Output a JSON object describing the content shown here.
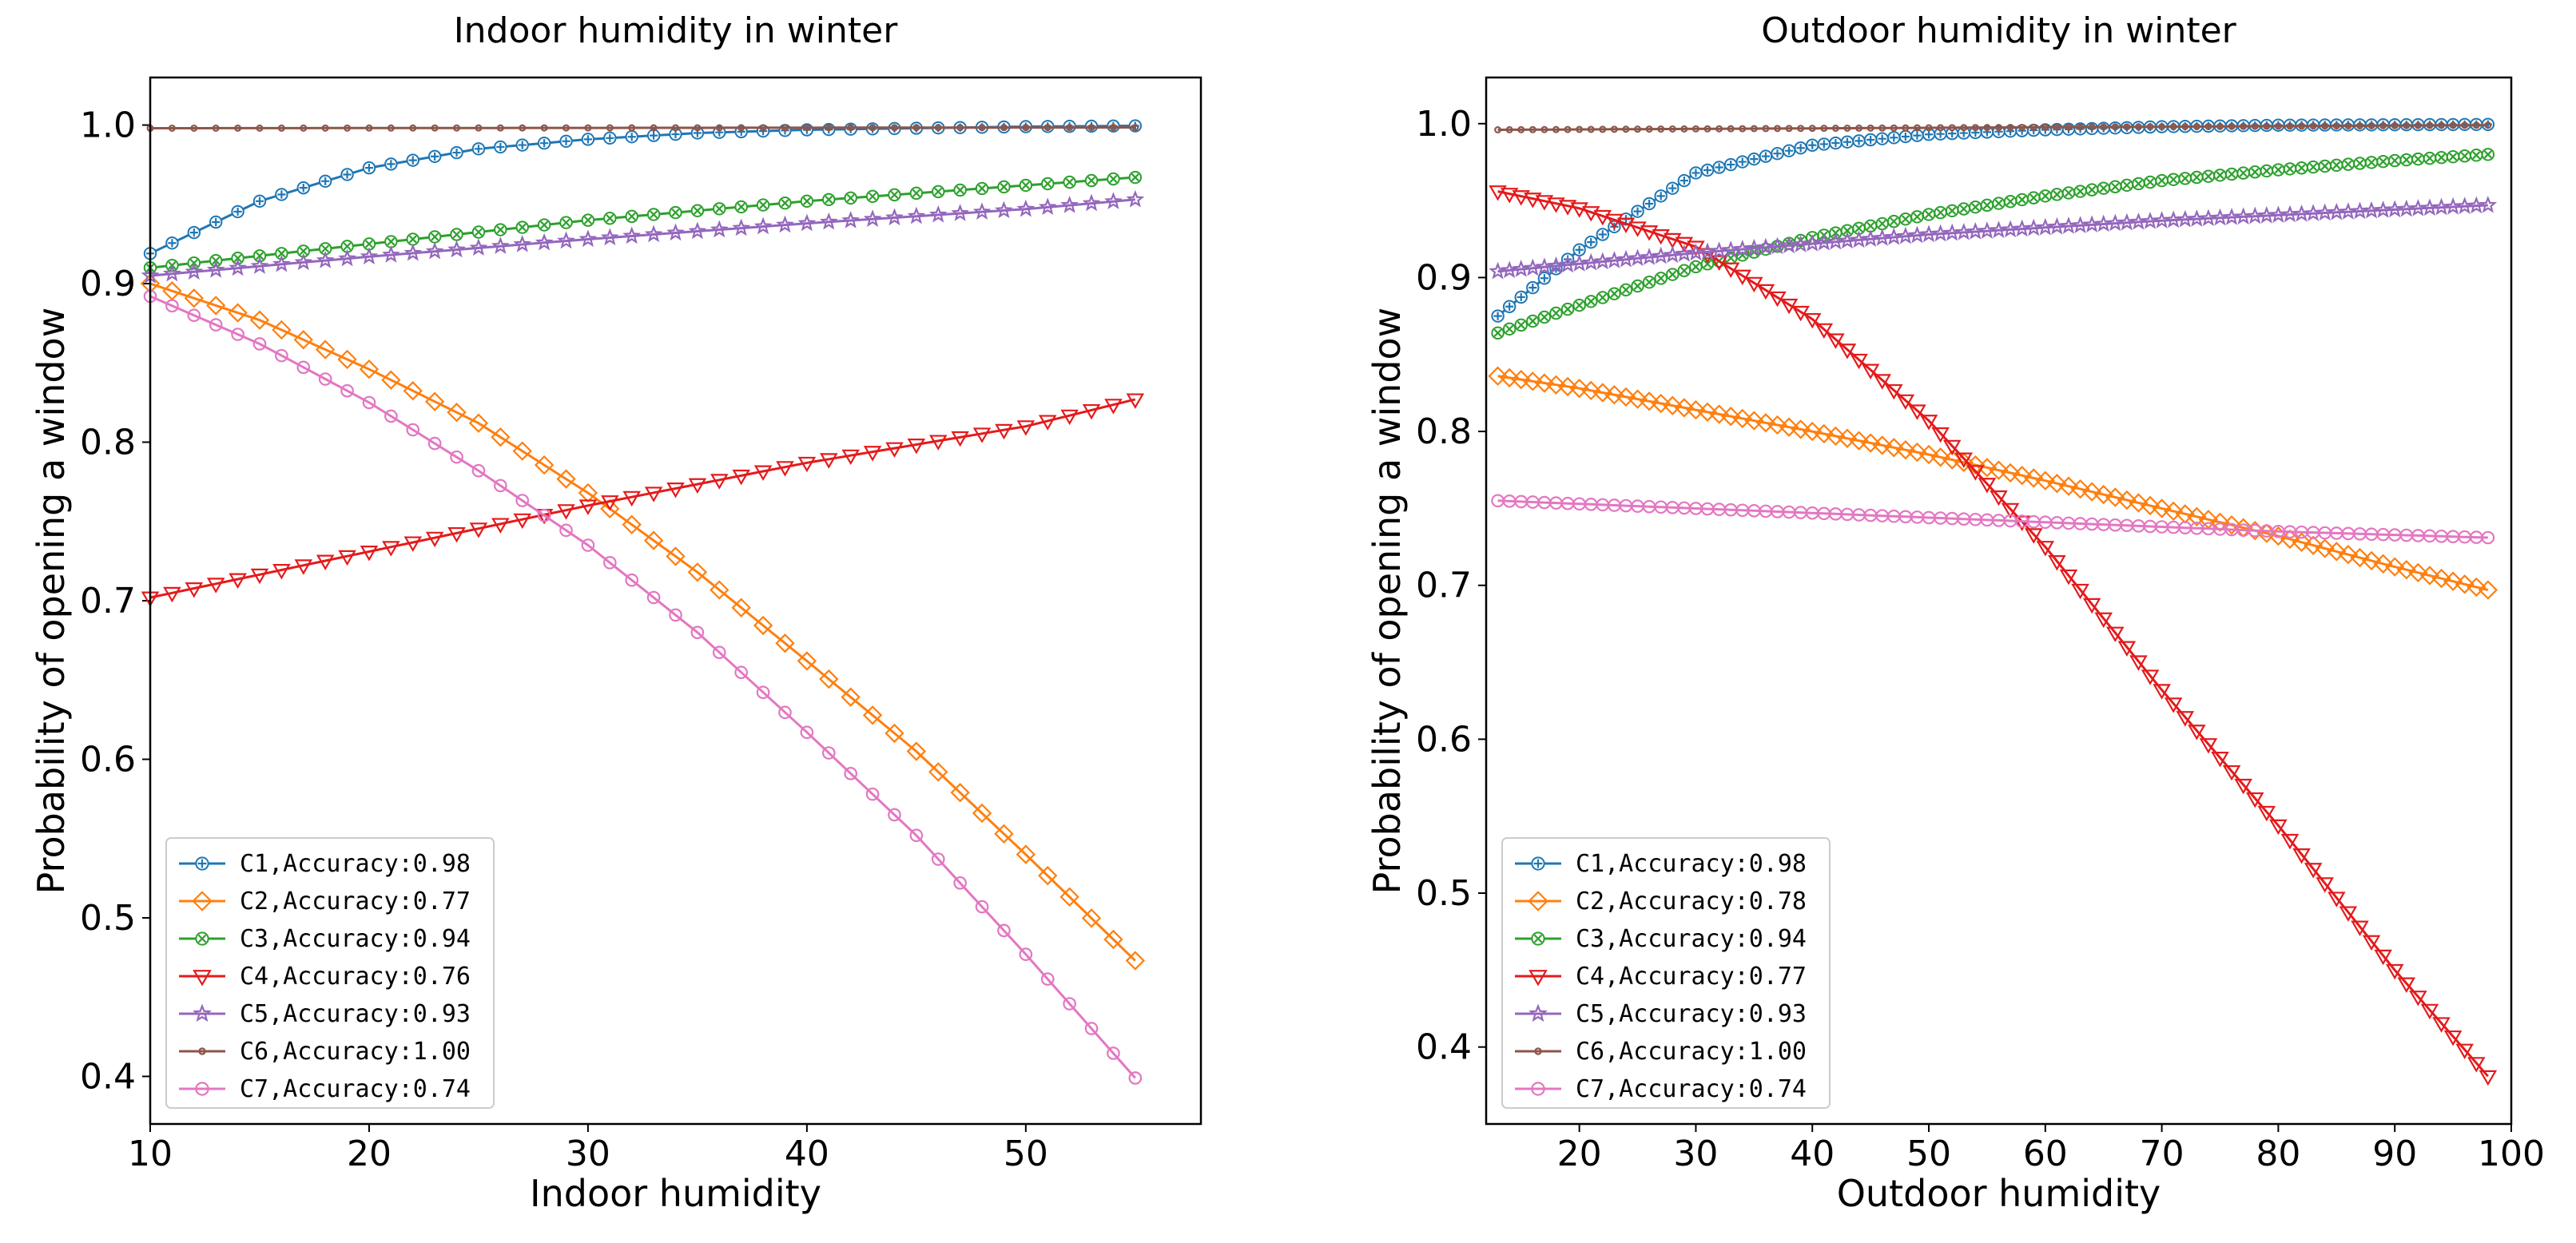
{
  "chart_data": [
    {
      "type": "line",
      "title": "Indoor humidity in winter",
      "xlabel": "Indoor humidity",
      "ylabel": "Probability of opening a window",
      "xlim": [
        10,
        58
      ],
      "ylim": [
        0.37,
        1.03
      ],
      "xticks": [
        10,
        20,
        30,
        40,
        50
      ],
      "xtick_labels": [
        "10",
        "20",
        "30",
        "40",
        "50"
      ],
      "yticks": [
        0.4,
        0.5,
        0.6,
        0.7,
        0.8,
        0.9,
        1.0
      ],
      "ytick_labels": [
        "0.4",
        "0.5",
        "0.6",
        "0.7",
        "0.8",
        "0.9",
        "1.0"
      ],
      "legend_position": "lower-left",
      "x_range": [
        10,
        55
      ],
      "n_points": 46,
      "series": [
        {
          "name": "C1",
          "legend": "C1,Accuracy:0.98",
          "color": "#1f77b4",
          "marker": "plus-circle",
          "points": [
            [
              10,
              0.919
            ],
            [
              15,
              0.952
            ],
            [
              20,
              0.973
            ],
            [
              25,
              0.985
            ],
            [
              30,
              0.991
            ],
            [
              35,
              0.995
            ],
            [
              40,
              0.997
            ],
            [
              45,
              0.998
            ],
            [
              50,
              0.999
            ],
            [
              55,
              0.9995
            ]
          ]
        },
        {
          "name": "C2",
          "legend": "C2,Accuracy:0.77",
          "color": "#ff7f0e",
          "marker": "diamond",
          "points": [
            [
              10,
              0.9
            ],
            [
              15,
              0.877
            ],
            [
              20,
              0.846
            ],
            [
              25,
              0.812
            ],
            [
              30,
              0.768
            ],
            [
              35,
              0.718
            ],
            [
              40,
              0.662
            ],
            [
              45,
              0.605
            ],
            [
              50,
              0.54
            ],
            [
              55,
              0.473
            ]
          ]
        },
        {
          "name": "C3",
          "legend": "C3,Accuracy:0.94",
          "color": "#2ca02c",
          "marker": "x-circle",
          "points": [
            [
              10,
              0.91
            ],
            [
              20,
              0.925
            ],
            [
              30,
              0.94
            ],
            [
              40,
              0.952
            ],
            [
              50,
              0.962
            ],
            [
              55,
              0.967
            ]
          ]
        },
        {
          "name": "C4",
          "legend": "C4,Accuracy:0.76",
          "color": "#e41a1c",
          "marker": "triangle-down",
          "points": [
            [
              10,
              0.702
            ],
            [
              20,
              0.731
            ],
            [
              30,
              0.76
            ],
            [
              40,
              0.787
            ],
            [
              50,
              0.81
            ],
            [
              55,
              0.827
            ]
          ]
        },
        {
          "name": "C5",
          "legend": "C5,Accuracy:0.93",
          "color": "#9467bd",
          "marker": "star",
          "points": [
            [
              10,
              0.905
            ],
            [
              20,
              0.917
            ],
            [
              30,
              0.928
            ],
            [
              40,
              0.938
            ],
            [
              50,
              0.947
            ],
            [
              55,
              0.953
            ]
          ]
        },
        {
          "name": "C6",
          "legend": "C6,Accuracy:1.00",
          "color": "#8c564b",
          "marker": "small-circle",
          "points": [
            [
              10,
              0.998
            ],
            [
              55,
              0.9985
            ]
          ]
        },
        {
          "name": "C7",
          "legend": "C7,Accuracy:0.74",
          "color": "#e377c2",
          "marker": "circle",
          "points": [
            [
              10,
              0.892
            ],
            [
              15,
              0.862
            ],
            [
              20,
              0.825
            ],
            [
              25,
              0.782
            ],
            [
              30,
              0.735
            ],
            [
              35,
              0.68
            ],
            [
              40,
              0.617
            ],
            [
              45,
              0.552
            ],
            [
              50,
              0.477
            ],
            [
              55,
              0.399
            ]
          ]
        }
      ]
    },
    {
      "type": "line",
      "title": "Outdoor humidity in winter",
      "xlabel": "Outdoor humidity",
      "ylabel": "Probability of opening a window",
      "xlim": [
        12,
        100
      ],
      "ylim": [
        0.35,
        1.03
      ],
      "xticks": [
        20,
        30,
        40,
        50,
        60,
        70,
        80,
        90,
        100
      ],
      "xtick_labels": [
        "20",
        "30",
        "40",
        "50",
        "60",
        "70",
        "80",
        "90",
        "100"
      ],
      "yticks": [
        0.4,
        0.5,
        0.6,
        0.7,
        0.8,
        0.9,
        1.0
      ],
      "ytick_labels": [
        "0.4",
        "0.5",
        "0.6",
        "0.7",
        "0.8",
        "0.9",
        "1.0"
      ],
      "legend_position": "lower-left",
      "x_range": [
        13,
        98
      ],
      "n_points": 86,
      "series": [
        {
          "name": "C1",
          "legend": "C1,Accuracy:0.98",
          "color": "#1f77b4",
          "marker": "plus-circle",
          "points": [
            [
              13,
              0.875
            ],
            [
              20,
              0.918
            ],
            [
              30,
              0.968
            ],
            [
              40,
              0.986
            ],
            [
              50,
              0.993
            ],
            [
              60,
              0.996
            ],
            [
              70,
              0.998
            ],
            [
              80,
              0.999
            ],
            [
              98,
              0.9995
            ]
          ]
        },
        {
          "name": "C2",
          "legend": "C2,Accuracy:0.78",
          "color": "#ff7f0e",
          "marker": "diamond",
          "points": [
            [
              13,
              0.836
            ],
            [
              20,
              0.828
            ],
            [
              30,
              0.814
            ],
            [
              40,
              0.8
            ],
            [
              50,
              0.785
            ],
            [
              60,
              0.768
            ],
            [
              70,
              0.75
            ],
            [
              80,
              0.732
            ],
            [
              90,
              0.712
            ],
            [
              98,
              0.697
            ]
          ]
        },
        {
          "name": "C3",
          "legend": "C3,Accuracy:0.94",
          "color": "#2ca02c",
          "marker": "x-circle",
          "points": [
            [
              13,
              0.864
            ],
            [
              20,
              0.882
            ],
            [
              30,
              0.907
            ],
            [
              40,
              0.926
            ],
            [
              50,
              0.941
            ],
            [
              60,
              0.953
            ],
            [
              70,
              0.963
            ],
            [
              80,
              0.97
            ],
            [
              90,
              0.976
            ],
            [
              98,
              0.98
            ]
          ]
        },
        {
          "name": "C4",
          "legend": "C4,Accuracy:0.77",
          "color": "#e41a1c",
          "marker": "triangle-down",
          "points": [
            [
              13,
              0.956
            ],
            [
              20,
              0.945
            ],
            [
              30,
              0.92
            ],
            [
              40,
              0.873
            ],
            [
              50,
              0.807
            ],
            [
              60,
              0.725
            ],
            [
              70,
              0.632
            ],
            [
              80,
              0.544
            ],
            [
              90,
              0.45
            ],
            [
              98,
              0.381
            ]
          ]
        },
        {
          "name": "C5",
          "legend": "C5,Accuracy:0.93",
          "color": "#9467bd",
          "marker": "star",
          "points": [
            [
              13,
              0.904
            ],
            [
              30,
              0.916
            ],
            [
              50,
              0.928
            ],
            [
              70,
              0.937
            ],
            [
              98,
              0.947
            ]
          ]
        },
        {
          "name": "C6",
          "legend": "C6,Accuracy:1.00",
          "color": "#8c564b",
          "marker": "small-circle",
          "points": [
            [
              13,
              0.996
            ],
            [
              98,
              0.999
            ]
          ]
        },
        {
          "name": "C7",
          "legend": "C7,Accuracy:0.74",
          "color": "#e377c2",
          "marker": "circle",
          "points": [
            [
              13,
              0.755
            ],
            [
              40,
              0.747
            ],
            [
              60,
              0.741
            ],
            [
              80,
              0.735
            ],
            [
              98,
              0.731
            ]
          ]
        }
      ]
    }
  ]
}
